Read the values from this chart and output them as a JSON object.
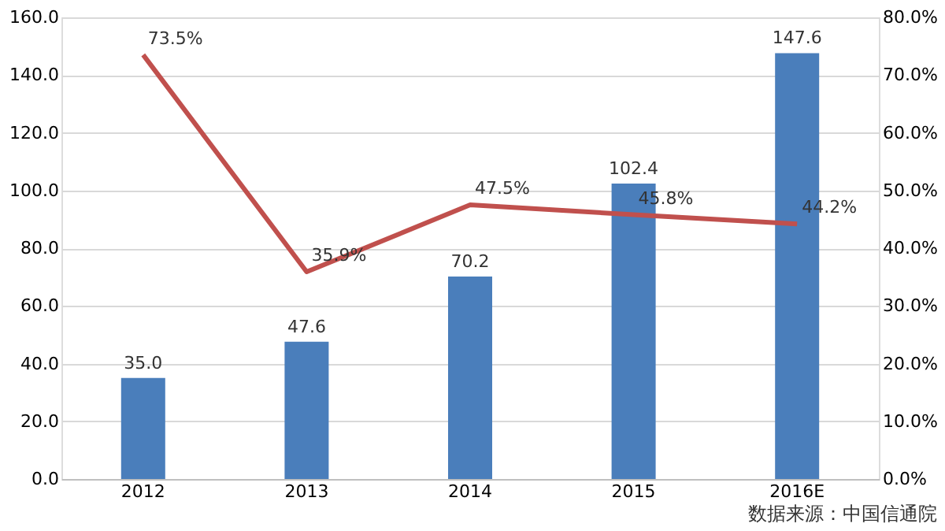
{
  "chart_data": {
    "type": "bar",
    "categories": [
      "2012",
      "2013",
      "2014",
      "2015",
      "2016E"
    ],
    "series": [
      {
        "color": "#4a7ebb",
        "values": [
          35.0,
          47.6,
          70.2,
          102.4,
          147.6
        ],
        "value_labels": [
          "35.0",
          "47.6",
          "70.2",
          "102.4",
          "147.6"
        ]
      },
      {
        "type": "line",
        "axis": "y2",
        "color": "#c0504d",
        "values": [
          73.5,
          35.9,
          47.5,
          45.8,
          44.2
        ],
        "value_labels": [
          "73.5%",
          "35.9%",
          "47.5%",
          "45.8%",
          "44.2%"
        ]
      }
    ],
    "ylim": [
      0,
      160
    ],
    "yticks": [
      {
        "value": 0,
        "label": "0.0"
      },
      {
        "value": 20,
        "label": "20.0"
      },
      {
        "value": 40,
        "label": "40.0"
      },
      {
        "value": 60,
        "label": "60.0"
      },
      {
        "value": 80,
        "label": "80.0"
      },
      {
        "value": 100,
        "label": "100.0"
      },
      {
        "value": 120,
        "label": "120.0"
      },
      {
        "value": 140,
        "label": "140.0"
      },
      {
        "value": 160,
        "label": "160.0"
      }
    ],
    "y2lim": [
      0,
      80
    ],
    "y2ticks": [
      {
        "value": 0,
        "label": "0.0%"
      },
      {
        "value": 10,
        "label": "10.0%"
      },
      {
        "value": 20,
        "label": "20.0%"
      },
      {
        "value": 30,
        "label": "30.0%"
      },
      {
        "value": 40,
        "label": "40.0%"
      },
      {
        "value": 50,
        "label": "50.0%"
      },
      {
        "value": 60,
        "label": "60.0%"
      },
      {
        "value": 70,
        "label": "70.0%"
      },
      {
        "value": 80,
        "label": "80.0%"
      }
    ],
    "grid": "y",
    "annotations": [
      "数据来源：中国信通院"
    ]
  }
}
